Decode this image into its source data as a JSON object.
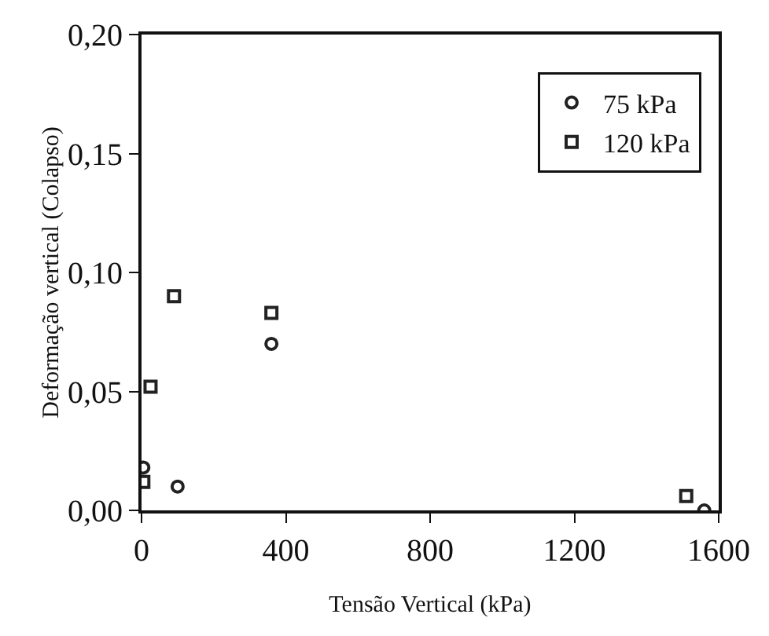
{
  "chart_data": {
    "type": "scatter",
    "xlabel": "Tensão Vertical (kPa)",
    "ylabel": "Deformação vertical (Colapso)",
    "series": [
      {
        "name": "75 kPa",
        "color": "#222222",
        "marker": "circle",
        "x": [
          5,
          100,
          360,
          1560
        ],
        "values": [
          0.018,
          0.01,
          0.07,
          0.0
        ]
      },
      {
        "name": "120 kPa",
        "color": "#222222",
        "marker": "square",
        "x": [
          5,
          25,
          90,
          360,
          1510
        ],
        "values": [
          0.012,
          0.052,
          0.09,
          0.083,
          0.006
        ]
      }
    ],
    "xlim": [
      0,
      1600
    ],
    "xticks": [
      0,
      400,
      800,
      1200,
      1600
    ],
    "ylim": [
      0,
      0.2
    ],
    "yticks": [
      {
        "value": 0,
        "label": "0,00"
      },
      {
        "value": 0.05,
        "label": "0,05"
      },
      {
        "value": 0.1,
        "label": "0,10"
      },
      {
        "value": 0.15,
        "label": "0,15"
      },
      {
        "value": 0.2,
        "label": "0,20"
      }
    ],
    "grid": false,
    "legend": "top right"
  }
}
